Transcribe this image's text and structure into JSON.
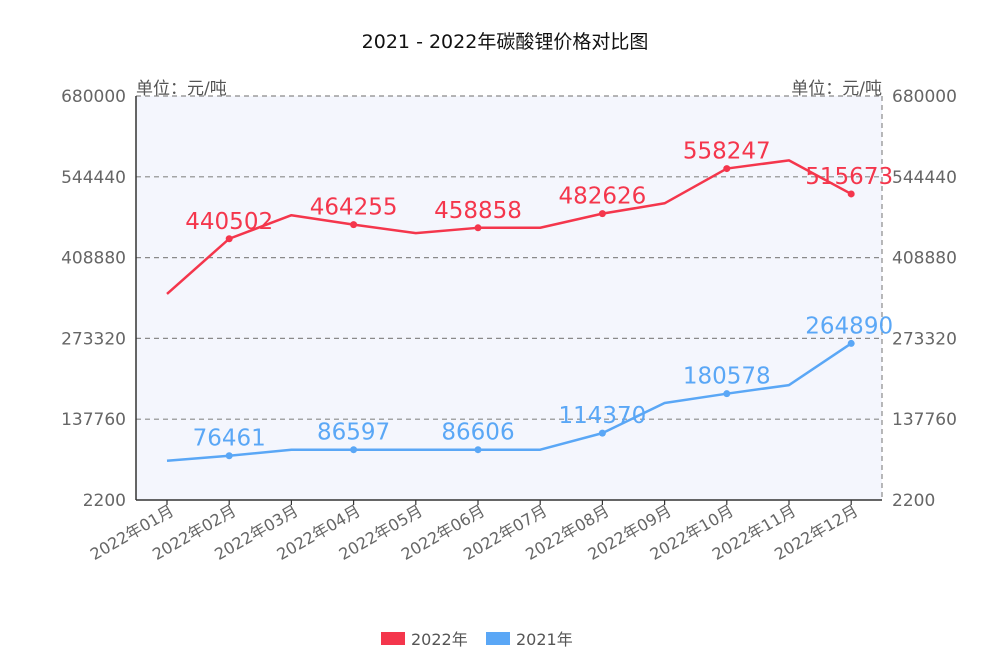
{
  "chart_data": {
    "type": "line",
    "title": "2021 - 2022年碳酸锂价格对比图",
    "unit_left": "单位：元/吨",
    "unit_right": "单位：元/吨",
    "categories": [
      "2022年01月",
      "2022年02月",
      "2022年03月",
      "2022年04月",
      "2022年05月",
      "2022年06月",
      "2022年07月",
      "2022年08月",
      "2022年09月",
      "2022年10月",
      "2022年11月",
      "2022年12月"
    ],
    "ylim": [
      2200,
      680000
    ],
    "yticks": [
      2200,
      137760,
      273320,
      408880,
      544440,
      680000
    ],
    "ytick_labels": [
      "2200",
      "137760",
      "273320",
      "408880",
      "544440",
      "680000"
    ],
    "grid": true,
    "legend_position": "bottom",
    "series": [
      {
        "name": "2022年",
        "color": "#f4364c",
        "values": [
          348000,
          440502,
          480000,
          464255,
          450000,
          458858,
          459000,
          482626,
          500000,
          558247,
          572000,
          515673
        ],
        "labels": [
          "",
          "440502",
          "",
          "464255",
          "",
          "458858",
          "",
          "482626",
          "",
          "558247",
          "",
          "515673"
        ]
      },
      {
        "name": "2021年",
        "color": "#5aa7f6",
        "values": [
          68000,
          76461,
          86500,
          86597,
          86600,
          86606,
          86610,
          114370,
          165000,
          180578,
          195000,
          264890
        ],
        "labels": [
          "",
          "76461",
          "",
          "86597",
          "",
          "86606",
          "",
          "114370",
          "",
          "180578",
          "",
          "264890"
        ]
      }
    ]
  }
}
